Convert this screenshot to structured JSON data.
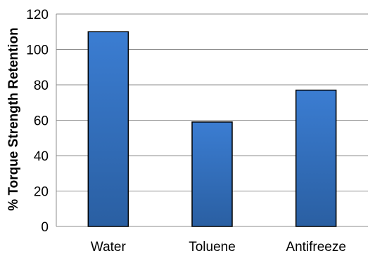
{
  "chart_data": {
    "type": "bar",
    "categories": [
      "Water",
      "Toluene",
      "Antifreeze"
    ],
    "values": [
      110,
      59,
      77
    ],
    "ylabel": "% Torque Strength Retention",
    "xlabel": "",
    "ylim": [
      0,
      120
    ],
    "yticks": [
      "0",
      "20",
      "40",
      "60",
      "80",
      "100",
      "120"
    ],
    "grid": true,
    "bar_color_top": "#3b7dd2",
    "bar_color_bottom": "#2a5fa2",
    "bar_outline": "#000000",
    "grid_color": "#8c8c8c"
  }
}
